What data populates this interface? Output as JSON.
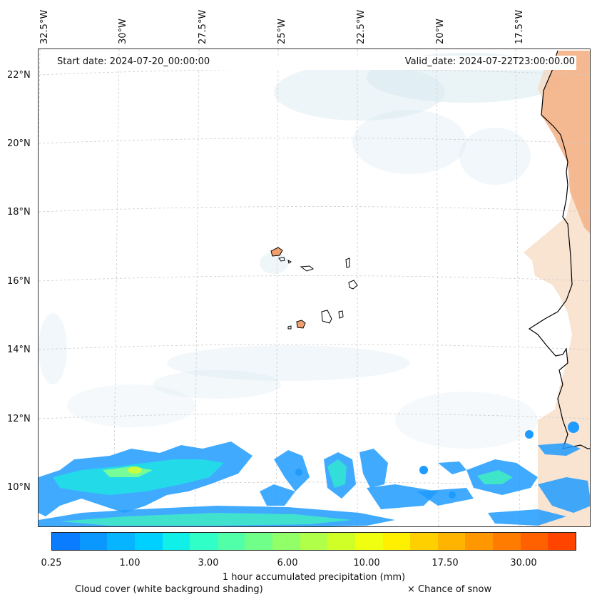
{
  "map": {
    "start_label": "Start date: 2024-07-20_00:00:00",
    "valid_label": "Valid_date: 2024-07-22T23:00:00.00",
    "lon_labels": [
      "32.5°W",
      "30°W",
      "27.5°W",
      "25°W",
      "22.5°W",
      "20°W",
      "17.5°W"
    ],
    "lat_labels": [
      "22°N",
      "20°N",
      "18°N",
      "16°N",
      "14°N",
      "12°N",
      "10°N"
    ]
  },
  "colorbar": {
    "title": "1 hour accumulated precipitation (mm)",
    "tick_labels": [
      "0.25",
      "1.00",
      "3.00",
      "6.00",
      "10.00",
      "17.50",
      "30.00"
    ],
    "colors": [
      "#0a7cff",
      "#0a98ff",
      "#06b4ff",
      "#00d0ff",
      "#10f0e8",
      "#30ffc8",
      "#50ffa8",
      "#70ff88",
      "#90ff68",
      "#b0ff48",
      "#d0ff28",
      "#f0ff10",
      "#fff000",
      "#ffd000",
      "#ffb400",
      "#ff9800",
      "#ff7c00",
      "#ff6000",
      "#ff4400"
    ]
  },
  "legend": {
    "cloud_cover": "Cloud cover (white background shading)",
    "snow": "× Chance of snow"
  }
}
